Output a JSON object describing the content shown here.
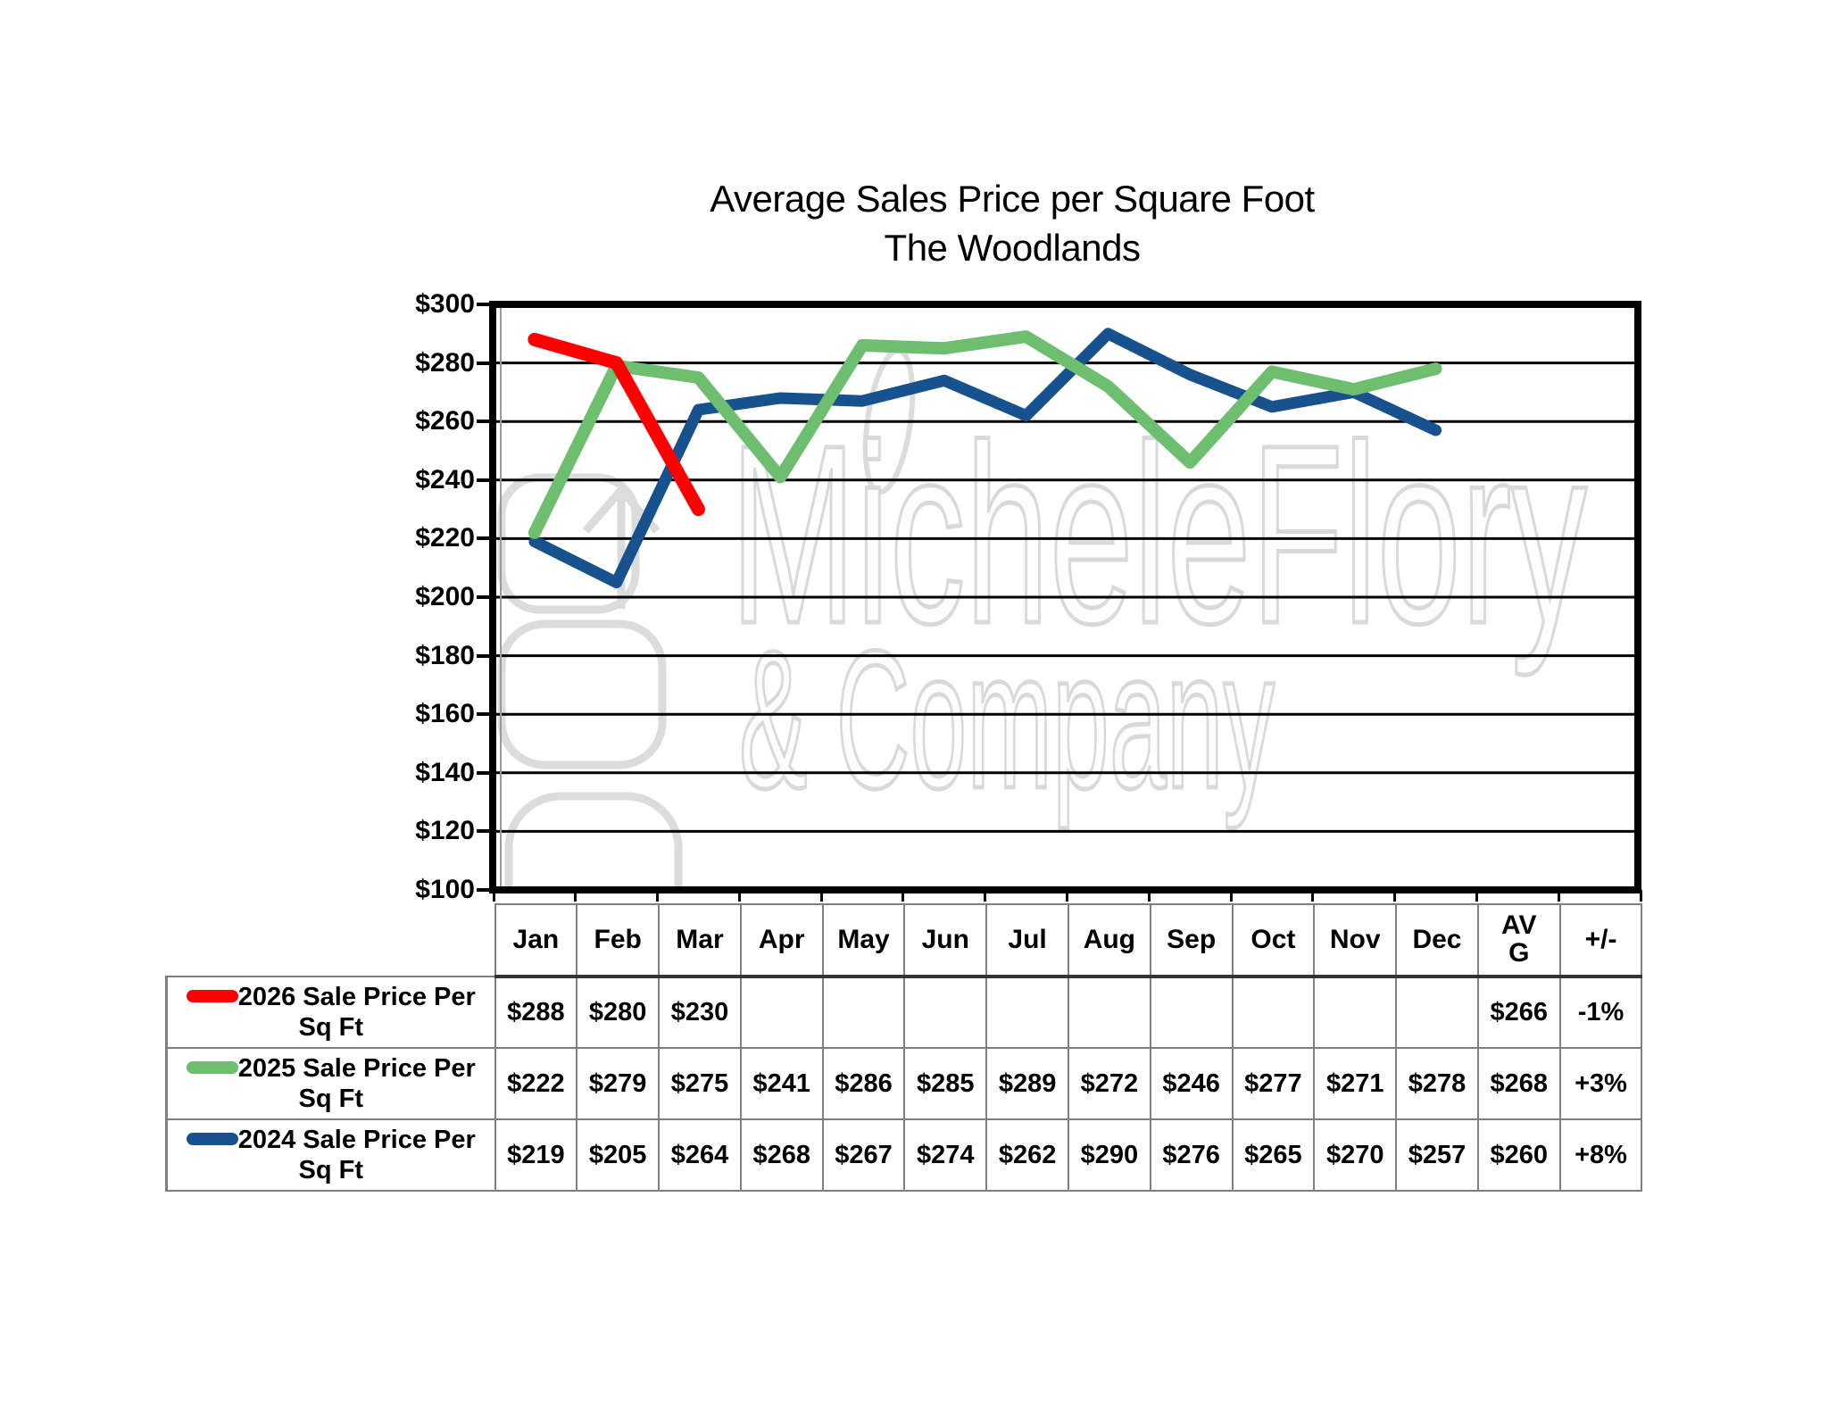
{
  "title": {
    "line1": "Average Sales Price per Square Foot",
    "line2": "The Woodlands"
  },
  "watermark": {
    "line1": "MicheleFlory",
    "line2": "& Company",
    "color": "#d9d9d9"
  },
  "chart_data": {
    "type": "line",
    "title": "Average Sales Price per Square Foot The Woodlands",
    "categories": [
      "Jan",
      "Feb",
      "Mar",
      "Apr",
      "May",
      "Jun",
      "Jul",
      "Aug",
      "Sep",
      "Oct",
      "Nov",
      "Dec"
    ],
    "series": [
      {
        "name": "2026 Sale Price Per Sq Ft",
        "color": "#fe0000",
        "values": [
          288,
          280,
          230,
          null,
          null,
          null,
          null,
          null,
          null,
          null,
          null,
          null
        ],
        "avg": 266,
        "change": "-1%"
      },
      {
        "name": "2025 Sale Price Per Sq Ft",
        "color": "#6dbf6f",
        "values": [
          222,
          279,
          275,
          241,
          286,
          285,
          289,
          272,
          246,
          277,
          271,
          278
        ],
        "avg": 268,
        "change": "+3%"
      },
      {
        "name": "2024 Sale Price Per Sq Ft",
        "color": "#17518e",
        "values": [
          219,
          205,
          264,
          268,
          267,
          274,
          262,
          290,
          276,
          265,
          270,
          257
        ],
        "avg": 260,
        "change": "+8%"
      }
    ],
    "ylim": [
      100,
      300
    ],
    "ytick_step": 20,
    "value_prefix": "$",
    "grid": true,
    "legend_position": "table-rows"
  },
  "table": {
    "extra_headers": [
      "AVG",
      "+/-"
    ]
  }
}
